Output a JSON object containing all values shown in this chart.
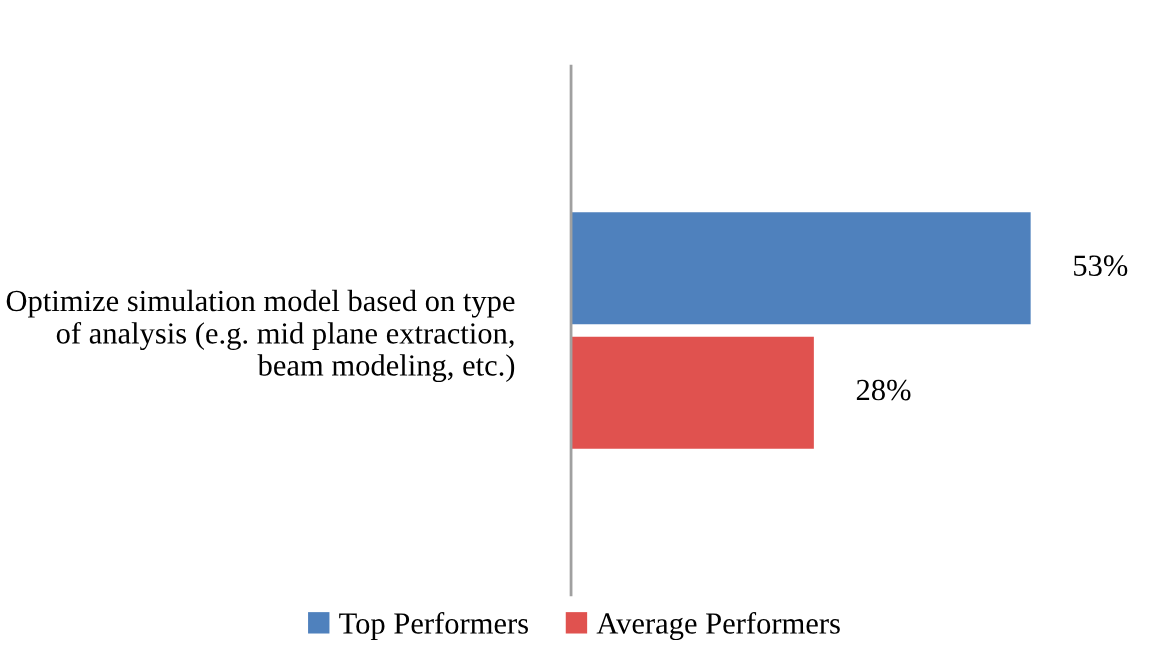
{
  "chart_data": {
    "type": "bar",
    "orientation": "horizontal",
    "categories": [
      "Optimize simulation model based on type\nof analysis (e.g. mid plane extraction,\nbeam modeling, etc.)"
    ],
    "series": [
      {
        "name": "Top Performers",
        "color": "#4f81bd",
        "values": [
          53
        ],
        "value_labels": [
          "53%"
        ]
      },
      {
        "name": "Average Performers",
        "color": "#e0524f",
        "values": [
          28
        ],
        "value_labels": [
          "28%"
        ]
      }
    ],
    "legend": "bottom",
    "grid": false
  }
}
